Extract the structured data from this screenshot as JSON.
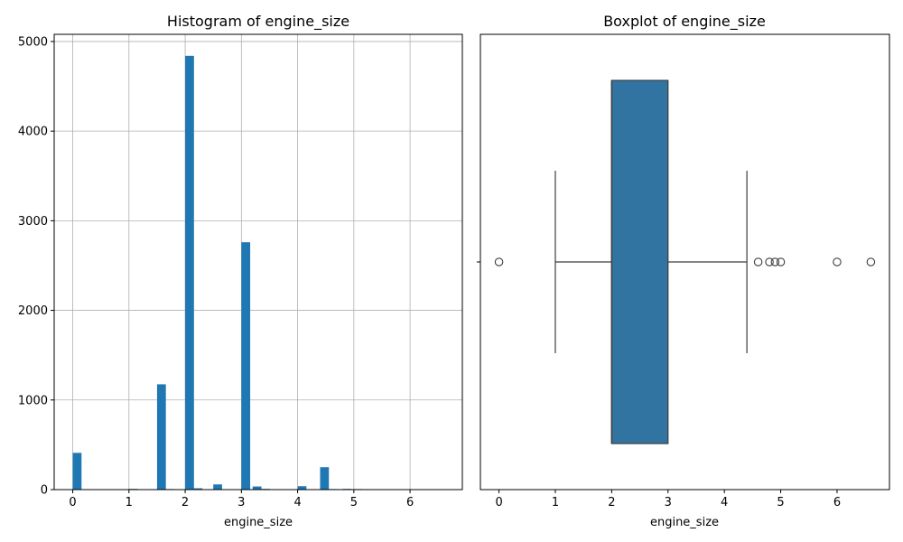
{
  "colors": {
    "bar": "#1f77b4",
    "box_fill": "#3274a1",
    "box_edge": "#3d3d3d",
    "grid": "#b0b0b0"
  },
  "chart_data": [
    {
      "type": "bar",
      "title": "Histogram of engine_size",
      "xlabel": "engine_size",
      "ylabel": "",
      "grid": true,
      "xlim": [
        -0.33,
        6.93
      ],
      "ylim": [
        0,
        5080
      ],
      "xticks": [
        0,
        1,
        2,
        3,
        4,
        5,
        6
      ],
      "yticks": [
        0,
        1000,
        2000,
        3000,
        4000,
        5000
      ],
      "bin_width": 0.1565,
      "bins": [
        {
          "x": 0.0,
          "count": 410
        },
        {
          "x": 1.0,
          "count": 8
        },
        {
          "x": 1.5,
          "count": 1175
        },
        {
          "x": 1.65,
          "count": 6
        },
        {
          "x": 2.0,
          "count": 4840
        },
        {
          "x": 2.15,
          "count": 15
        },
        {
          "x": 2.5,
          "count": 58
        },
        {
          "x": 2.65,
          "count": 5
        },
        {
          "x": 3.0,
          "count": 2760
        },
        {
          "x": 3.2,
          "count": 35
        },
        {
          "x": 3.35,
          "count": 8
        },
        {
          "x": 3.5,
          "count": 5
        },
        {
          "x": 4.0,
          "count": 38
        },
        {
          "x": 4.4,
          "count": 250
        },
        {
          "x": 4.55,
          "count": 6
        },
        {
          "x": 4.8,
          "count": 8
        },
        {
          "x": 5.0,
          "count": 6
        },
        {
          "x": 6.0,
          "count": 5
        },
        {
          "x": 6.5,
          "count": 4
        }
      ]
    },
    {
      "type": "box",
      "title": "Boxplot of engine_size",
      "xlabel": "engine_size",
      "grid": false,
      "xlim": [
        -0.33,
        6.93
      ],
      "xticks": [
        0,
        1,
        2,
        3,
        4,
        5,
        6
      ],
      "whisker_low": 1.0,
      "q1": 2.0,
      "median": 2.0,
      "q3": 3.0,
      "whisker_high": 4.4,
      "outliers": [
        0.0,
        4.6,
        4.8,
        4.9,
        5.0,
        6.0,
        6.6
      ]
    }
  ]
}
